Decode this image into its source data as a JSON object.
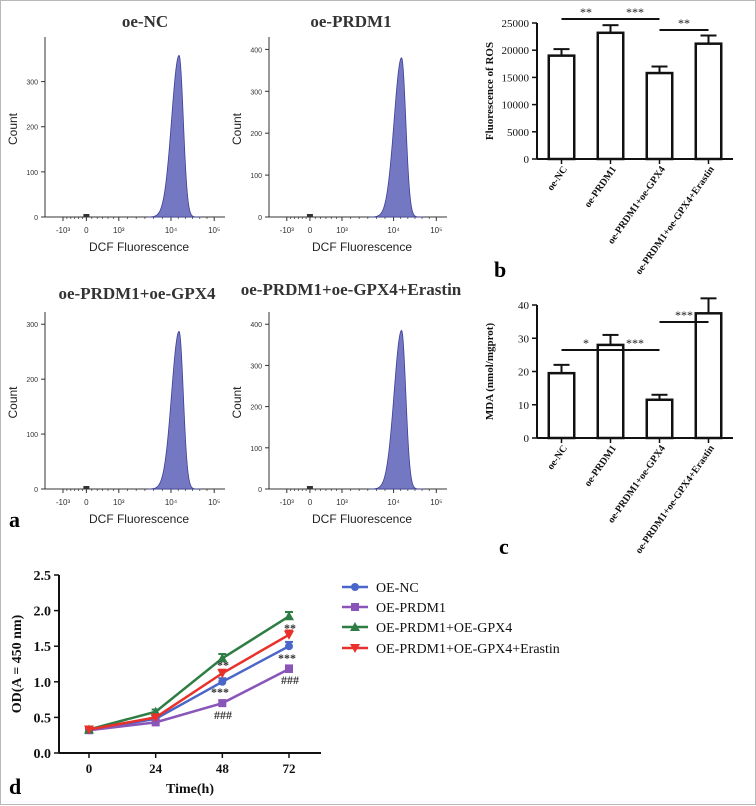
{
  "panel_labels": {
    "a": "a",
    "b": "b",
    "c": "c",
    "d": "d"
  },
  "colors": {
    "flow_fill": "#7478c2",
    "flow_stroke": "#3c3f95",
    "oe_nc": "#4a66c8",
    "oe_prdm1": "#8a55b8",
    "oe_gpx4": "#2e7d44",
    "oe_erastin": "#e8312a"
  },
  "chart_data": [
    {
      "type": "histogram",
      "title": "oe-NC",
      "xlabel": "DCF Fluorescence",
      "ylabel": "Count",
      "x_tick_labels": [
        "-10³",
        "0",
        "10³",
        "10⁴",
        "10⁵"
      ],
      "y_ticks": [
        "0",
        "100",
        "200",
        "300"
      ],
      "ylim": [
        0,
        390
      ],
      "peak_count": 358,
      "peak_position": "10^4.2"
    },
    {
      "type": "histogram",
      "title": "oe-PRDM1",
      "xlabel": "DCF Fluorescence",
      "ylabel": "Count",
      "x_tick_labels": [
        "-10³",
        "0",
        "10³",
        "10⁴",
        "10⁵"
      ],
      "y_ticks": [
        "0",
        "100",
        "200",
        "300",
        "400"
      ],
      "ylim": [
        0,
        420
      ],
      "peak_count": 380,
      "peak_position": "10^4.25"
    },
    {
      "type": "histogram",
      "title": "oe-PRDM1+oe-GPX4",
      "xlabel": "DCF Fluorescence",
      "ylabel": "Count",
      "x_tick_labels": [
        "-10³",
        "0",
        "10³",
        "10⁴",
        "10⁵"
      ],
      "y_ticks": [
        "0",
        "100",
        "200",
        "300"
      ],
      "ylim": [
        0,
        315
      ],
      "peak_count": 287,
      "peak_position": "10^4.1"
    },
    {
      "type": "histogram",
      "title": "oe-PRDM1+oe-GPX4+Erastin",
      "xlabel": "DCF Fluorescence",
      "ylabel": "Count",
      "x_tick_labels": [
        "-10³",
        "0",
        "10³",
        "10⁴",
        "10⁵"
      ],
      "y_ticks": [
        "0",
        "100",
        "200",
        "300",
        "400"
      ],
      "ylim": [
        0,
        420
      ],
      "peak_count": 385,
      "peak_position": "10^4.2"
    },
    {
      "type": "bar",
      "categories": [
        "oe-NC",
        "oe-PRDM1",
        "oe-PRDM1+oe-GPX4",
        "oe-PRDM1+oe-GPX4+Erastin"
      ],
      "values": [
        19000,
        23200,
        15800,
        21200
      ],
      "errors": [
        1200,
        1400,
        1200,
        1500
      ],
      "ylabel": "Fluorescence of ROS",
      "ylim": [
        0,
        25000
      ],
      "y_ticks": [
        "0",
        "5000",
        "10000",
        "15000",
        "20000",
        "25000"
      ],
      "significance": [
        {
          "from": 0,
          "to": 1,
          "label": "**"
        },
        {
          "from": 1,
          "to": 2,
          "label": "***"
        },
        {
          "from": 2,
          "to": 3,
          "label": "**"
        }
      ]
    },
    {
      "type": "bar",
      "categories": [
        "oe-NC",
        "oe-PRDM1",
        "oe-PRDM1+oe-GPX4",
        "oe-PRDM1+oe-GPX4+Erastin"
      ],
      "values": [
        19.5,
        28,
        11.5,
        37.5
      ],
      "errors": [
        2.5,
        3,
        1.5,
        4.5
      ],
      "ylabel": "MDA (nmol/mgprot)",
      "ylim": [
        0,
        40
      ],
      "y_ticks": [
        "0",
        "10",
        "20",
        "30",
        "40"
      ],
      "significance": [
        {
          "from": 0,
          "to": 1,
          "label": "*"
        },
        {
          "from": 1,
          "to": 2,
          "label": "***"
        },
        {
          "from": 2,
          "to": 3,
          "label": "***"
        }
      ]
    },
    {
      "type": "line",
      "x": [
        0,
        24,
        48,
        72
      ],
      "xlabel": "Time(h)",
      "ylabel": "OD(A = 450 nm)",
      "ylim": [
        0,
        2.5
      ],
      "y_ticks": [
        "0.0",
        "0.5",
        "1.0",
        "1.5",
        "2.0",
        "2.5"
      ],
      "x_ticks": [
        "0",
        "24",
        "48",
        "72"
      ],
      "series": [
        {
          "name": "OE-NC",
          "values": [
            0.32,
            0.48,
            1.0,
            1.5
          ],
          "errors": [
            0.02,
            0.03,
            0.05,
            0.06
          ]
        },
        {
          "name": "OE-PRDM1",
          "values": [
            0.32,
            0.43,
            0.7,
            1.18
          ],
          "errors": [
            0.02,
            0.03,
            0.04,
            0.05
          ]
        },
        {
          "name": "OE-PRDM1+OE-GPX4",
          "values": [
            0.33,
            0.58,
            1.33,
            1.92
          ],
          "errors": [
            0.02,
            0.03,
            0.06,
            0.06
          ]
        },
        {
          "name": "OE-PRDM1+OE-GPX4+Erastin",
          "values": [
            0.33,
            0.5,
            1.12,
            1.66
          ],
          "errors": [
            0.02,
            0.03,
            0.05,
            0.06
          ]
        }
      ],
      "annotations": [
        {
          "x": 48,
          "label": "**"
        },
        {
          "x": 48,
          "label": "***"
        },
        {
          "x": 48,
          "label": "###"
        },
        {
          "x": 72,
          "label": "**"
        },
        {
          "x": 72,
          "label": "***"
        },
        {
          "x": 72,
          "label": "###"
        }
      ]
    }
  ]
}
